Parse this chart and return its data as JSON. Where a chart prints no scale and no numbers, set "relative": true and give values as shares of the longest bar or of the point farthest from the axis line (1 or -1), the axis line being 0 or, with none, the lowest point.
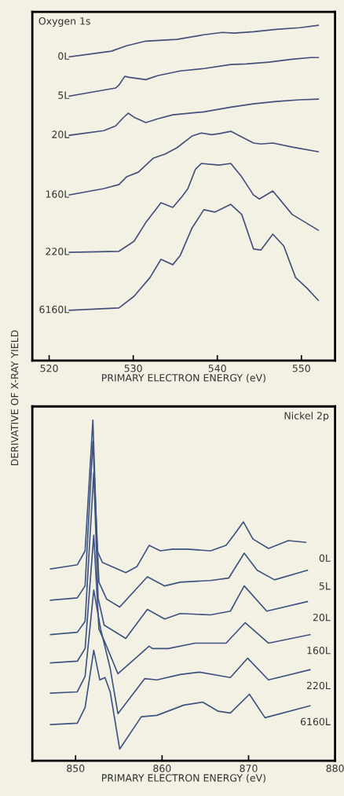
{
  "chart_data": [
    {
      "type": "line",
      "title": "Oxygen 1s",
      "xlabel": "PRIMARY ELECTRON ENERGY (eV)",
      "ylabel": "DERIVATIVE OF X-RAY YIELD",
      "relative": true,
      "xlim": [
        518,
        554
      ],
      "xticks": [
        520,
        530,
        540,
        550
      ],
      "grid": false,
      "legend": false,
      "tick_labels": "x",
      "series": [
        {
          "name": "0L",
          "color": "#44507a",
          "x": [
            522.4,
            527.4,
            529.2,
            531.5,
            535.2,
            538.4,
            540.6,
            542.0,
            544.3,
            547.0,
            549.8,
            552.0
          ],
          "values": [
            0.906,
            0.923,
            0.939,
            0.953,
            0.958,
            0.972,
            0.979,
            0.977,
            0.981,
            0.988,
            0.993,
            1.0
          ]
        },
        {
          "name": "5L",
          "color": "#44507a",
          "x": [
            522.4,
            527.9,
            528.3,
            529.0,
            529.5,
            531.5,
            532.9,
            535.6,
            538.4,
            541.6,
            543.4,
            546.1,
            548.9,
            551.1,
            552.0
          ],
          "values": [
            0.789,
            0.813,
            0.822,
            0.848,
            0.845,
            0.838,
            0.85,
            0.864,
            0.871,
            0.883,
            0.885,
            0.89,
            0.899,
            0.904,
            0.904
          ]
        },
        {
          "name": "20L",
          "color": "#44507a",
          "x": [
            522.4,
            526.5,
            527.9,
            528.8,
            529.4,
            530.1,
            531.5,
            532.9,
            534.7,
            538.4,
            541.6,
            544.3,
            547.0,
            549.8,
            552.0
          ],
          "values": [
            0.672,
            0.686,
            0.7,
            0.724,
            0.738,
            0.726,
            0.71,
            0.721,
            0.733,
            0.742,
            0.756,
            0.766,
            0.773,
            0.778,
            0.78
          ]
        },
        {
          "name": "160L",
          "color": "#44507a",
          "x": [
            522.4,
            526.5,
            528.3,
            529.2,
            530.6,
            532.4,
            533.8,
            535.2,
            537.0,
            538.1,
            539.3,
            540.2,
            541.6,
            542.9,
            544.3,
            545.2,
            546.6,
            548.9,
            552.0
          ],
          "values": [
            0.494,
            0.513,
            0.525,
            0.548,
            0.562,
            0.604,
            0.616,
            0.635,
            0.67,
            0.679,
            0.674,
            0.677,
            0.684,
            0.667,
            0.649,
            0.646,
            0.649,
            0.637,
            0.623
          ]
        },
        {
          "name": "220L",
          "color": "#44507a",
          "x": [
            522.4,
            528.3,
            530.1,
            531.5,
            533.3,
            534.7,
            535.8,
            536.5,
            537.4,
            538.1,
            540.2,
            541.6,
            542.9,
            544.3,
            545.0,
            546.6,
            548.9,
            552.0
          ],
          "values": [
            0.323,
            0.326,
            0.356,
            0.412,
            0.471,
            0.457,
            0.489,
            0.513,
            0.571,
            0.588,
            0.583,
            0.588,
            0.548,
            0.494,
            0.482,
            0.506,
            0.436,
            0.389
          ]
        },
        {
          "name": "6160L",
          "color": "#44507a",
          "x": [
            522.4,
            528.3,
            530.1,
            532.0,
            533.3,
            534.7,
            535.6,
            537.0,
            538.4,
            539.7,
            541.6,
            542.9,
            544.3,
            545.2,
            546.6,
            547.9,
            549.3,
            550.7,
            552.0
          ],
          "values": [
            0.15,
            0.157,
            0.192,
            0.248,
            0.302,
            0.286,
            0.314,
            0.396,
            0.45,
            0.443,
            0.466,
            0.436,
            0.333,
            0.33,
            0.377,
            0.342,
            0.248,
            0.215,
            0.18
          ]
        }
      ]
    },
    {
      "type": "line",
      "title": "Nickel 2p",
      "xlabel": "PRIMARY ELECTRON ENERGY (eV)",
      "relative": true,
      "xlim": [
        845,
        880
      ],
      "xticks": [
        850,
        860,
        870,
        880
      ],
      "grid": false,
      "legend": false,
      "tick_labels": "x",
      "series": [
        {
          "name": "0L",
          "color": "#3e5380",
          "x": [
            847.1,
            850.2,
            851.1,
            852.0,
            852.5,
            853.1,
            855.8,
            857.1,
            858.5,
            859.8,
            861.2,
            862.9,
            865.6,
            867.4,
            868.3,
            869.4,
            870.5,
            872.3,
            874.6,
            876.6
          ],
          "values": [
            0.563,
            0.575,
            0.616,
            1.0,
            0.616,
            0.582,
            0.552,
            0.57,
            0.632,
            0.616,
            0.621,
            0.621,
            0.616,
            0.632,
            0.662,
            0.701,
            0.651,
            0.623,
            0.646,
            0.641
          ]
        },
        {
          "name": "5L",
          "color": "#3e5380",
          "x": [
            847.1,
            850.2,
            851.1,
            852.0,
            852.7,
            853.6,
            855.1,
            858.3,
            860.3,
            862.1,
            865.6,
            867.7,
            869.5,
            871.0,
            873.0,
            876.8
          ],
          "values": [
            0.471,
            0.478,
            0.513,
            0.938,
            0.524,
            0.474,
            0.451,
            0.54,
            0.513,
            0.524,
            0.529,
            0.536,
            0.609,
            0.559,
            0.531,
            0.559
          ]
        },
        {
          "name": "20L",
          "color": "#3e5380",
          "x": [
            847.1,
            850.2,
            851.1,
            852.1,
            852.6,
            853.3,
            855.8,
            858.3,
            860.3,
            862.1,
            865.6,
            867.9,
            869.5,
            872.1,
            876.8
          ],
          "values": [
            0.37,
            0.377,
            0.409,
            0.846,
            0.478,
            0.398,
            0.359,
            0.444,
            0.416,
            0.432,
            0.428,
            0.439,
            0.513,
            0.439,
            0.467
          ]
        },
        {
          "name": "160L",
          "color": "#3e5380",
          "x": [
            847.1,
            850.2,
            851.1,
            852.1,
            852.7,
            853.4,
            854.9,
            858.5,
            858.9,
            860.7,
            863.8,
            867.4,
            869.6,
            872.3,
            877.1
          ],
          "values": [
            0.287,
            0.292,
            0.329,
            0.662,
            0.386,
            0.347,
            0.255,
            0.336,
            0.329,
            0.329,
            0.345,
            0.345,
            0.405,
            0.345,
            0.37
          ]
        },
        {
          "name": "220L",
          "color": "#3e5380",
          "x": [
            847.1,
            850.2,
            851.1,
            852.1,
            852.9,
            853.5,
            854.0,
            854.9,
            858.0,
            859.4,
            862.1,
            864.3,
            867.9,
            869.9,
            872.3,
            877.1
          ],
          "values": [
            0.198,
            0.202,
            0.248,
            0.501,
            0.386,
            0.324,
            0.271,
            0.138,
            0.241,
            0.237,
            0.253,
            0.26,
            0.244,
            0.301,
            0.237,
            0.267
          ]
        },
        {
          "name": "6160L",
          "color": "#3e5380",
          "x": [
            847.1,
            850.2,
            851.1,
            852.1,
            852.8,
            853.4,
            854.0,
            855.1,
            857.6,
            859.4,
            862.5,
            864.7,
            866.5,
            867.9,
            870.1,
            871.9,
            877.1
          ],
          "values": [
            0.106,
            0.11,
            0.156,
            0.324,
            0.237,
            0.244,
            0.202,
            0.034,
            0.129,
            0.133,
            0.163,
            0.172,
            0.145,
            0.14,
            0.195,
            0.126,
            0.161
          ]
        }
      ]
    }
  ]
}
